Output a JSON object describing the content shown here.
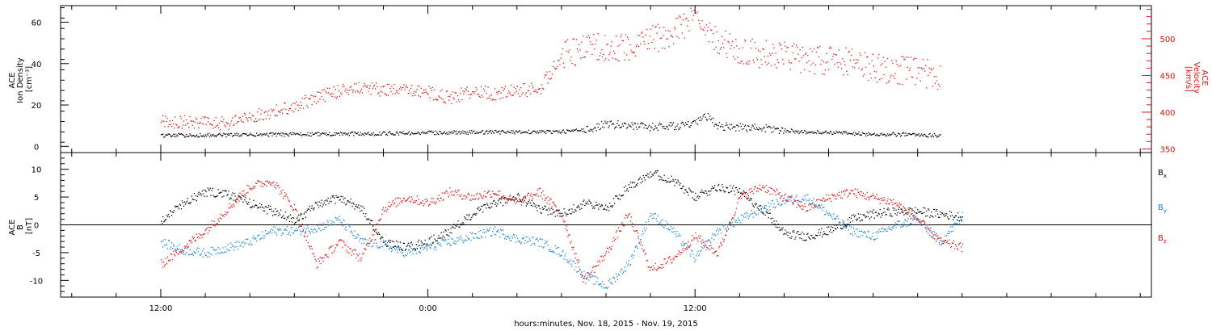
{
  "colors": {
    "black": "#000000",
    "red": "#e01010",
    "blue": "#1a86d6"
  },
  "chart_data": [
    {
      "type": "scatter",
      "panel": "top",
      "ylabel_lines": [
        "ACE",
        "Ion Density",
        "[cm⁻³]"
      ],
      "ylim": [
        -3,
        68
      ],
      "yticks": [
        0,
        20,
        40,
        60
      ],
      "right_axis": {
        "label_lines": [
          "ACE",
          "Velocity",
          "[km/s]"
        ],
        "ylim": [
          345,
          545
        ],
        "yticks": [
          350,
          400,
          450,
          500
        ],
        "color": "#e01010"
      },
      "series": [
        {
          "axis": "left",
          "color": "#000000",
          "points": [
            [
              0,
              5.5
            ],
            [
              2,
              5.6
            ],
            [
              4,
              5.8
            ],
            [
              6,
              6.0
            ],
            [
              8,
              6.2
            ],
            [
              10,
              6.4
            ],
            [
              12,
              6.8
            ],
            [
              14,
              7.0
            ],
            [
              16,
              7.2
            ],
            [
              18,
              7.3
            ],
            [
              19,
              8.0
            ],
            [
              20,
              11.0
            ],
            [
              21,
              10.5
            ],
            [
              22,
              9.5
            ],
            [
              23,
              10.0
            ],
            [
              24,
              11.0
            ],
            [
              24.5,
              15.0
            ],
            [
              25,
              10.0
            ],
            [
              26,
              9.5
            ],
            [
              27,
              9.0
            ],
            [
              28,
              8.0
            ],
            [
              29,
              7.0
            ],
            [
              30,
              7.0
            ],
            [
              31,
              6.5
            ],
            [
              32,
              6.0
            ],
            [
              33,
              6.0
            ],
            [
              34,
              5.8
            ],
            [
              35,
              5.5
            ]
          ]
        },
        {
          "axis": "right",
          "color": "#e01010",
          "points": [
            [
              0,
              388
            ],
            [
              2,
              386
            ],
            [
              3,
              385
            ],
            [
              4,
              395
            ],
            [
              5,
              400
            ],
            [
              6,
              410
            ],
            [
              7,
              420
            ],
            [
              8,
              430
            ],
            [
              9,
              435
            ],
            [
              10,
              430
            ],
            [
              11,
              430
            ],
            [
              12,
              428
            ],
            [
              13,
              420
            ],
            [
              14,
              430
            ],
            [
              15,
              425
            ],
            [
              16,
              430
            ],
            [
              17,
              432
            ],
            [
              18,
              478
            ],
            [
              19,
              485
            ],
            [
              20,
              490
            ],
            [
              21,
              490
            ],
            [
              22,
              500
            ],
            [
              23,
              505
            ],
            [
              23.5,
              520
            ],
            [
              24,
              545
            ],
            [
              25,
              495
            ],
            [
              26,
              485
            ],
            [
              27,
              480
            ],
            [
              28,
              480
            ],
            [
              29,
              472
            ],
            [
              30,
              470
            ],
            [
              31,
              468
            ],
            [
              32,
              462
            ],
            [
              33,
              458
            ],
            [
              34,
              455
            ],
            [
              35,
              450
            ]
          ]
        }
      ]
    },
    {
      "type": "scatter",
      "panel": "bottom",
      "ylabel_lines": [
        "ACE",
        "B",
        "[nT]"
      ],
      "ylim": [
        -13,
        13
      ],
      "yticks": [
        -10,
        -5,
        0,
        5,
        10
      ],
      "zero_line": true,
      "legend": [
        {
          "label": "B",
          "sub": "x",
          "color": "#000000"
        },
        {
          "label": "B",
          "sub": "y",
          "color": "#1a86d6"
        },
        {
          "label": "B",
          "sub": "z",
          "color": "#e01010"
        }
      ],
      "series": [
        {
          "name": "Bx",
          "color": "#000000",
          "points": [
            [
              0,
              1.0
            ],
            [
              1,
              4.0
            ],
            [
              2,
              6.0
            ],
            [
              3,
              5.5
            ],
            [
              4,
              4.0
            ],
            [
              5,
              2.5
            ],
            [
              6,
              1.0
            ],
            [
              7,
              3.5
            ],
            [
              8,
              5.0
            ],
            [
              9,
              3.0
            ],
            [
              10,
              -3.0
            ],
            [
              11,
              -4.0
            ],
            [
              12,
              -3.0
            ],
            [
              13,
              -1.0
            ],
            [
              14,
              2.0
            ],
            [
              15,
              4.0
            ],
            [
              16,
              5.0
            ],
            [
              17,
              3.0
            ],
            [
              18,
              2.0
            ],
            [
              19,
              4.0
            ],
            [
              20,
              3.0
            ],
            [
              21,
              7.0
            ],
            [
              22,
              9.5
            ],
            [
              23,
              8.0
            ],
            [
              24,
              5.0
            ],
            [
              25,
              7.0
            ],
            [
              26,
              6.0
            ],
            [
              27,
              3.0
            ],
            [
              28,
              -1.5
            ],
            [
              29,
              -2.0
            ],
            [
              30,
              -1.0
            ],
            [
              31,
              1.0
            ],
            [
              32,
              2.0
            ],
            [
              33,
              2.5
            ],
            [
              34,
              2.5
            ],
            [
              35,
              2.0
            ],
            [
              36,
              1.5
            ]
          ]
        },
        {
          "name": "By",
          "color": "#1a86d6",
          "points": [
            [
              0,
              -3.0
            ],
            [
              1,
              -4.5
            ],
            [
              2,
              -5.0
            ],
            [
              3,
              -4.0
            ],
            [
              4,
              -3.0
            ],
            [
              5,
              -1.0
            ],
            [
              6,
              -1.0
            ],
            [
              7,
              -0.5
            ],
            [
              8,
              1.0
            ],
            [
              9,
              -3.0
            ],
            [
              10,
              -3.5
            ],
            [
              11,
              -5.0
            ],
            [
              12,
              -4.0
            ],
            [
              13,
              -3.0
            ],
            [
              14,
              -2.0
            ],
            [
              15,
              -1.0
            ],
            [
              16,
              -2.5
            ],
            [
              17,
              -3.0
            ],
            [
              18,
              -5.0
            ],
            [
              19,
              -9.0
            ],
            [
              20,
              -11.0
            ],
            [
              21,
              -7.0
            ],
            [
              22,
              2.0
            ],
            [
              23,
              -1.0
            ],
            [
              24,
              -6.0
            ],
            [
              25,
              -1.0
            ],
            [
              26,
              1.0
            ],
            [
              27,
              3.0
            ],
            [
              28,
              4.5
            ],
            [
              29,
              5.0
            ],
            [
              30,
              2.0
            ],
            [
              31,
              -1.0
            ],
            [
              32,
              -2.0
            ],
            [
              33,
              0.0
            ],
            [
              34,
              1.0
            ],
            [
              35,
              -3.0
            ],
            [
              36,
              1.5
            ]
          ]
        },
        {
          "name": "Bz",
          "color": "#e01010",
          "points": [
            [
              0,
              -7.0
            ],
            [
              1,
              -4.0
            ],
            [
              2,
              -1.0
            ],
            [
              3,
              3.0
            ],
            [
              4,
              7.0
            ],
            [
              5,
              8.0
            ],
            [
              6,
              3.0
            ],
            [
              7,
              -7.0
            ],
            [
              8,
              -3.0
            ],
            [
              9,
              -6.0
            ],
            [
              10,
              3.0
            ],
            [
              11,
              5.0
            ],
            [
              12,
              4.0
            ],
            [
              13,
              6.0
            ],
            [
              14,
              5.0
            ],
            [
              15,
              6.0
            ],
            [
              16,
              4.0
            ],
            [
              17,
              6.0
            ],
            [
              18,
              2.0
            ],
            [
              19,
              -10.0
            ],
            [
              20,
              -5.0
            ],
            [
              21,
              2.0
            ],
            [
              22,
              -8.0
            ],
            [
              23,
              -6.0
            ],
            [
              24,
              -2.0
            ],
            [
              25,
              -5.0
            ],
            [
              26,
              5.0
            ],
            [
              27,
              7.0
            ],
            [
              28,
              5.0
            ],
            [
              29,
              3.0
            ],
            [
              30,
              5.0
            ],
            [
              31,
              6.0
            ],
            [
              32,
              5.0
            ],
            [
              33,
              4.0
            ],
            [
              34,
              1.0
            ],
            [
              35,
              -3.0
            ],
            [
              36,
              -4.0
            ]
          ]
        }
      ]
    }
  ],
  "x_axis": {
    "xlim": [
      -4.5,
      44.5
    ],
    "ticks": [
      {
        "x": 0,
        "label": "12:00"
      },
      {
        "x": 12,
        "label": "0:00"
      },
      {
        "x": 24,
        "label": "12:00"
      }
    ],
    "minor_step": 2,
    "xlabel": "hours:minutes, Nov. 18, 2015 - Nov. 19, 2015"
  }
}
